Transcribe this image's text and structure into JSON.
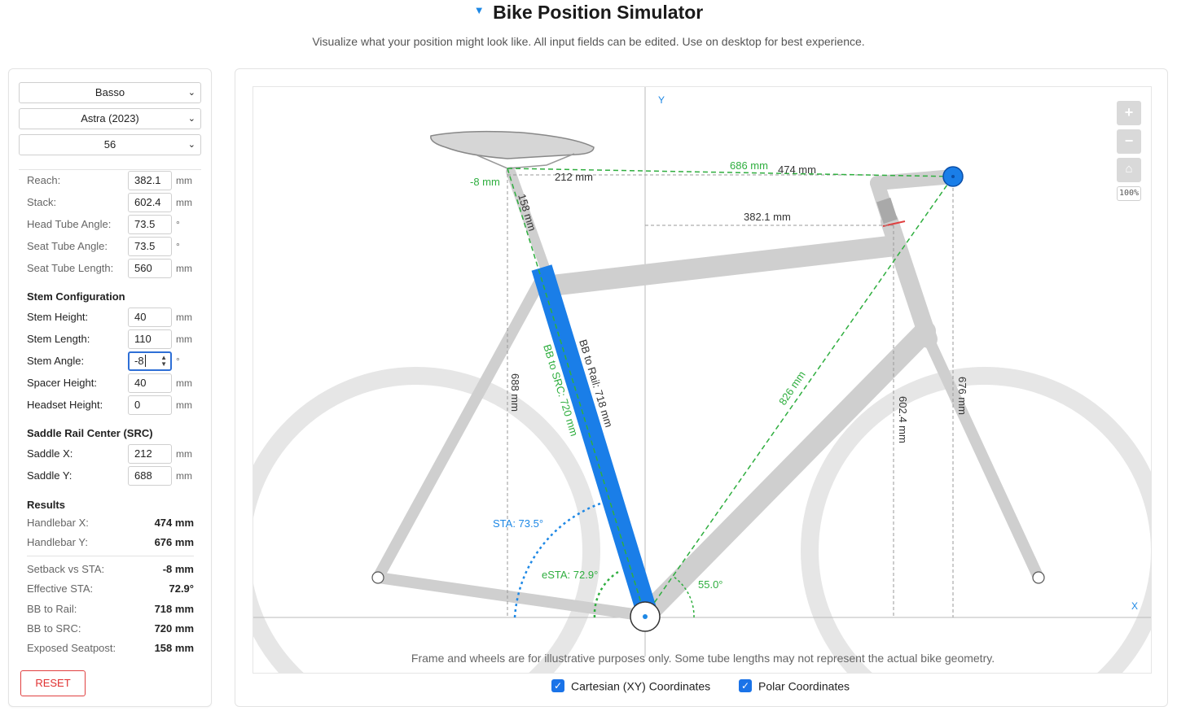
{
  "header": {
    "title": "Bike Position Simulator",
    "subtitle": "Visualize what your position might look like. All input fields can be edited. Use on desktop for best experience."
  },
  "selects": {
    "brand": "Basso",
    "model": "Astra (2023)",
    "size": "56"
  },
  "frame": [
    {
      "label": "Reach:",
      "value": "382.1",
      "unit": "mm"
    },
    {
      "label": "Stack:",
      "value": "602.4",
      "unit": "mm"
    },
    {
      "label": "Head Tube Angle:",
      "value": "73.5",
      "unit": "°"
    },
    {
      "label": "Seat Tube Angle:",
      "value": "73.5",
      "unit": "°"
    },
    {
      "label": "Seat Tube Length:",
      "value": "560",
      "unit": "mm"
    }
  ],
  "stem": {
    "heading": "Stem Configuration",
    "fields": [
      {
        "label": "Stem Height:",
        "value": "40",
        "unit": "mm"
      },
      {
        "label": "Stem Length:",
        "value": "110",
        "unit": "mm"
      },
      {
        "label": "Stem Angle:",
        "value": "-8",
        "unit": "°"
      },
      {
        "label": "Spacer Height:",
        "value": "40",
        "unit": "mm"
      },
      {
        "label": "Headset Height:",
        "value": "0",
        "unit": "mm"
      }
    ]
  },
  "saddle": {
    "heading": "Saddle Rail Center (SRC)",
    "fields": [
      {
        "label": "Saddle X:",
        "value": "212",
        "unit": "mm"
      },
      {
        "label": "Saddle Y:",
        "value": "688",
        "unit": "mm"
      }
    ]
  },
  "results": {
    "heading": "Results",
    "group1": [
      {
        "label": "Handlebar X:",
        "value": "474 mm"
      },
      {
        "label": "Handlebar Y:",
        "value": "676 mm"
      }
    ],
    "group2": [
      {
        "label": "Setback vs STA:",
        "value": "-8 mm"
      },
      {
        "label": "Effective STA:",
        "value": "72.9°"
      },
      {
        "label": "BB to Rail:",
        "value": "718 mm"
      },
      {
        "label": "BB to SRC:",
        "value": "720 mm"
      },
      {
        "label": "Exposed Seatpost:",
        "value": "158 mm"
      }
    ]
  },
  "reset_label": "RESET",
  "canvas": {
    "y_axis": "Y",
    "x_axis": "X",
    "zoom_in": "+",
    "zoom_out": "−",
    "home": "⌂",
    "zoom_level": "100%",
    "disclaimer": "Frame and wheels are for illustrative purposes only. Some tube lengths may not represent the actual bike geometry.",
    "labels": {
      "setback": "-8 mm",
      "saddle_x": "212 mm",
      "exposed": "158 mm",
      "saddle_to_bar": "686 mm",
      "bar_x": "474 mm",
      "reach": "382.1 mm",
      "saddle_y": "688 mm",
      "bb_to_rail": "BB to Rail: 718 mm",
      "bb_to_src": "BB to SRC: 720 mm",
      "bb_to_bar": "826 mm",
      "stack": "602.4 mm",
      "bar_y": "676 mm",
      "sta": "STA: 73.5°",
      "esta": "eSTA: 72.9°",
      "bar_angle": "55.0°"
    },
    "colors": {
      "frame": "#cfcfcf",
      "seatpost": "#1a7ee8",
      "green": "#2fae3f",
      "blue_label": "#1e88e5",
      "dashed": "#9a9a9a"
    }
  },
  "toggles": {
    "cartesian": "Cartesian (XY) Coordinates",
    "polar": "Polar Coordinates"
  }
}
